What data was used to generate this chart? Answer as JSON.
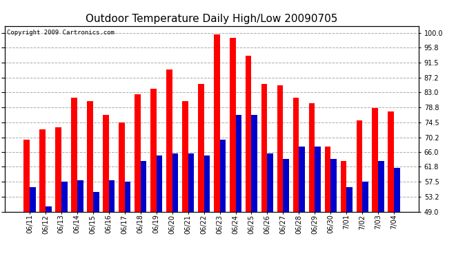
{
  "title": "Outdoor Temperature Daily High/Low 20090705",
  "copyright": "Copyright 2009 Cartronics.com",
  "dates": [
    "06/11",
    "06/12",
    "06/13",
    "06/14",
    "06/15",
    "06/16",
    "06/17",
    "06/18",
    "06/19",
    "06/20",
    "06/21",
    "06/22",
    "06/23",
    "06/24",
    "06/25",
    "06/26",
    "06/27",
    "06/28",
    "06/29",
    "06/30",
    "7/01",
    "7/02",
    "7/03",
    "7/04"
  ],
  "highs": [
    69.5,
    72.5,
    73.0,
    81.5,
    80.5,
    76.5,
    74.5,
    82.5,
    84.0,
    89.5,
    80.5,
    85.5,
    99.5,
    98.5,
    93.5,
    85.5,
    85.0,
    81.5,
    80.0,
    67.5,
    63.5,
    75.0,
    78.5,
    77.5
  ],
  "lows": [
    56.0,
    50.5,
    57.5,
    58.0,
    54.5,
    58.0,
    57.5,
    63.5,
    65.0,
    65.5,
    65.5,
    65.0,
    69.5,
    76.5,
    76.5,
    65.5,
    64.0,
    67.5,
    67.5,
    64.0,
    56.0,
    57.5,
    63.5,
    61.5
  ],
  "high_color": "#ff0000",
  "low_color": "#0000cc",
  "bar_width": 0.38,
  "ymin": 49.0,
  "ymax": 102.0,
  "yticks": [
    49.0,
    53.2,
    57.5,
    61.8,
    66.0,
    70.2,
    74.5,
    78.8,
    83.0,
    87.2,
    91.5,
    95.8,
    100.0
  ],
  "grid_color": "#aaaaaa",
  "bg_color": "#ffffff",
  "title_fontsize": 11,
  "tick_fontsize": 7,
  "copyright_fontsize": 6.5
}
